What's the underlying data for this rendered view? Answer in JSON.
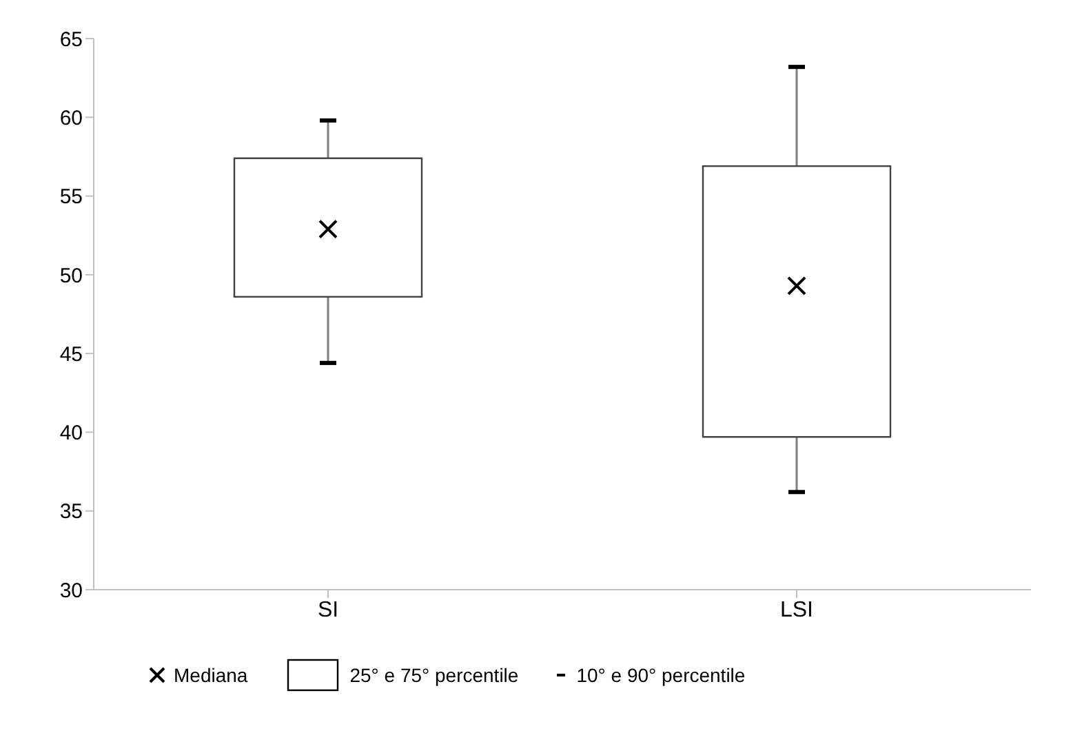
{
  "chart_data": {
    "type": "box",
    "categories": [
      "SI",
      "LSI"
    ],
    "boxes": [
      {
        "low": 44.4,
        "q1": 48.6,
        "median": 52.9,
        "q3": 57.4,
        "high": 59.8
      },
      {
        "low": 36.2,
        "q1": 39.7,
        "median": 49.3,
        "q3": 56.9,
        "high": 63.2
      }
    ],
    "ylim": [
      30,
      65
    ],
    "yticks": [
      30,
      35,
      40,
      45,
      50,
      55,
      60,
      65
    ],
    "grid": false,
    "annotations": [
      "Mediana",
      "25° e 75° percentile",
      "10° e 90° percentile"
    ]
  }
}
